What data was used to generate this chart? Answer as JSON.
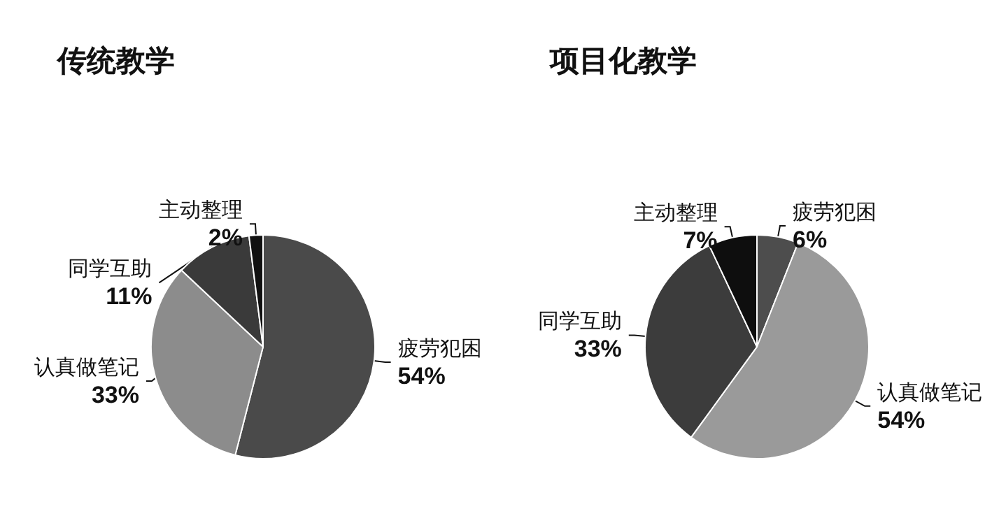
{
  "chart_data": [
    {
      "type": "pie",
      "title": "传统教学",
      "categories": [
        "疲劳犯困",
        "认真做笔记",
        "同学互助",
        "主动整理"
      ],
      "values": [
        54,
        33,
        11,
        2
      ],
      "value_labels": [
        "54%",
        "33%",
        "11%",
        "2%"
      ],
      "colors": [
        "#4a4a4a",
        "#8c8c8c",
        "#3a3a3a",
        "#111111"
      ],
      "legend": false
    },
    {
      "type": "pie",
      "title": "项目化教学",
      "categories": [
        "疲劳犯困",
        "认真做笔记",
        "同学互助",
        "主动整理"
      ],
      "values": [
        6,
        54,
        33,
        7
      ],
      "value_labels": [
        "6%",
        "54%",
        "33%",
        "7%"
      ],
      "colors": [
        "#4d4d4d",
        "#9a9a9a",
        "#3c3c3c",
        "#0e0e0e"
      ],
      "legend": false
    }
  ]
}
